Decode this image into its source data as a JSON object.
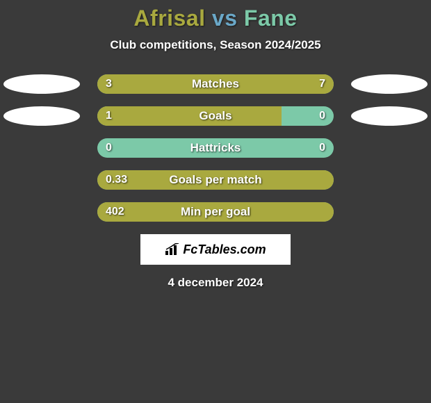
{
  "title": {
    "player1": "Afrisal",
    "vs": "vs",
    "player2": "Fane",
    "player1_color": "#a9a93f",
    "vs_color": "#6aa8c8",
    "player2_color": "#7cc9a8"
  },
  "subtitle": "Club competitions, Season 2024/2025",
  "colors": {
    "track": "#7cc9a8",
    "left_fill": "#a9a93f",
    "right_fill": "#a9a93f",
    "background": "#3a3a3a",
    "ellipse": "#ffffff"
  },
  "stats": [
    {
      "label": "Matches",
      "left_val": "3",
      "right_val": "7",
      "left_pct": 30,
      "right_pct": 70,
      "show_ellipses": true
    },
    {
      "label": "Goals",
      "left_val": "1",
      "right_val": "0",
      "left_pct": 78,
      "right_pct": 0,
      "show_ellipses": true
    },
    {
      "label": "Hattricks",
      "left_val": "0",
      "right_val": "0",
      "left_pct": 0,
      "right_pct": 0,
      "show_ellipses": false
    },
    {
      "label": "Goals per match",
      "left_val": "0.33",
      "right_val": "",
      "left_pct": 100,
      "right_pct": 0,
      "show_ellipses": false
    },
    {
      "label": "Min per goal",
      "left_val": "402",
      "right_val": "",
      "left_pct": 100,
      "right_pct": 0,
      "show_ellipses": false
    }
  ],
  "logo": "FcTables.com",
  "date": "4 december 2024"
}
